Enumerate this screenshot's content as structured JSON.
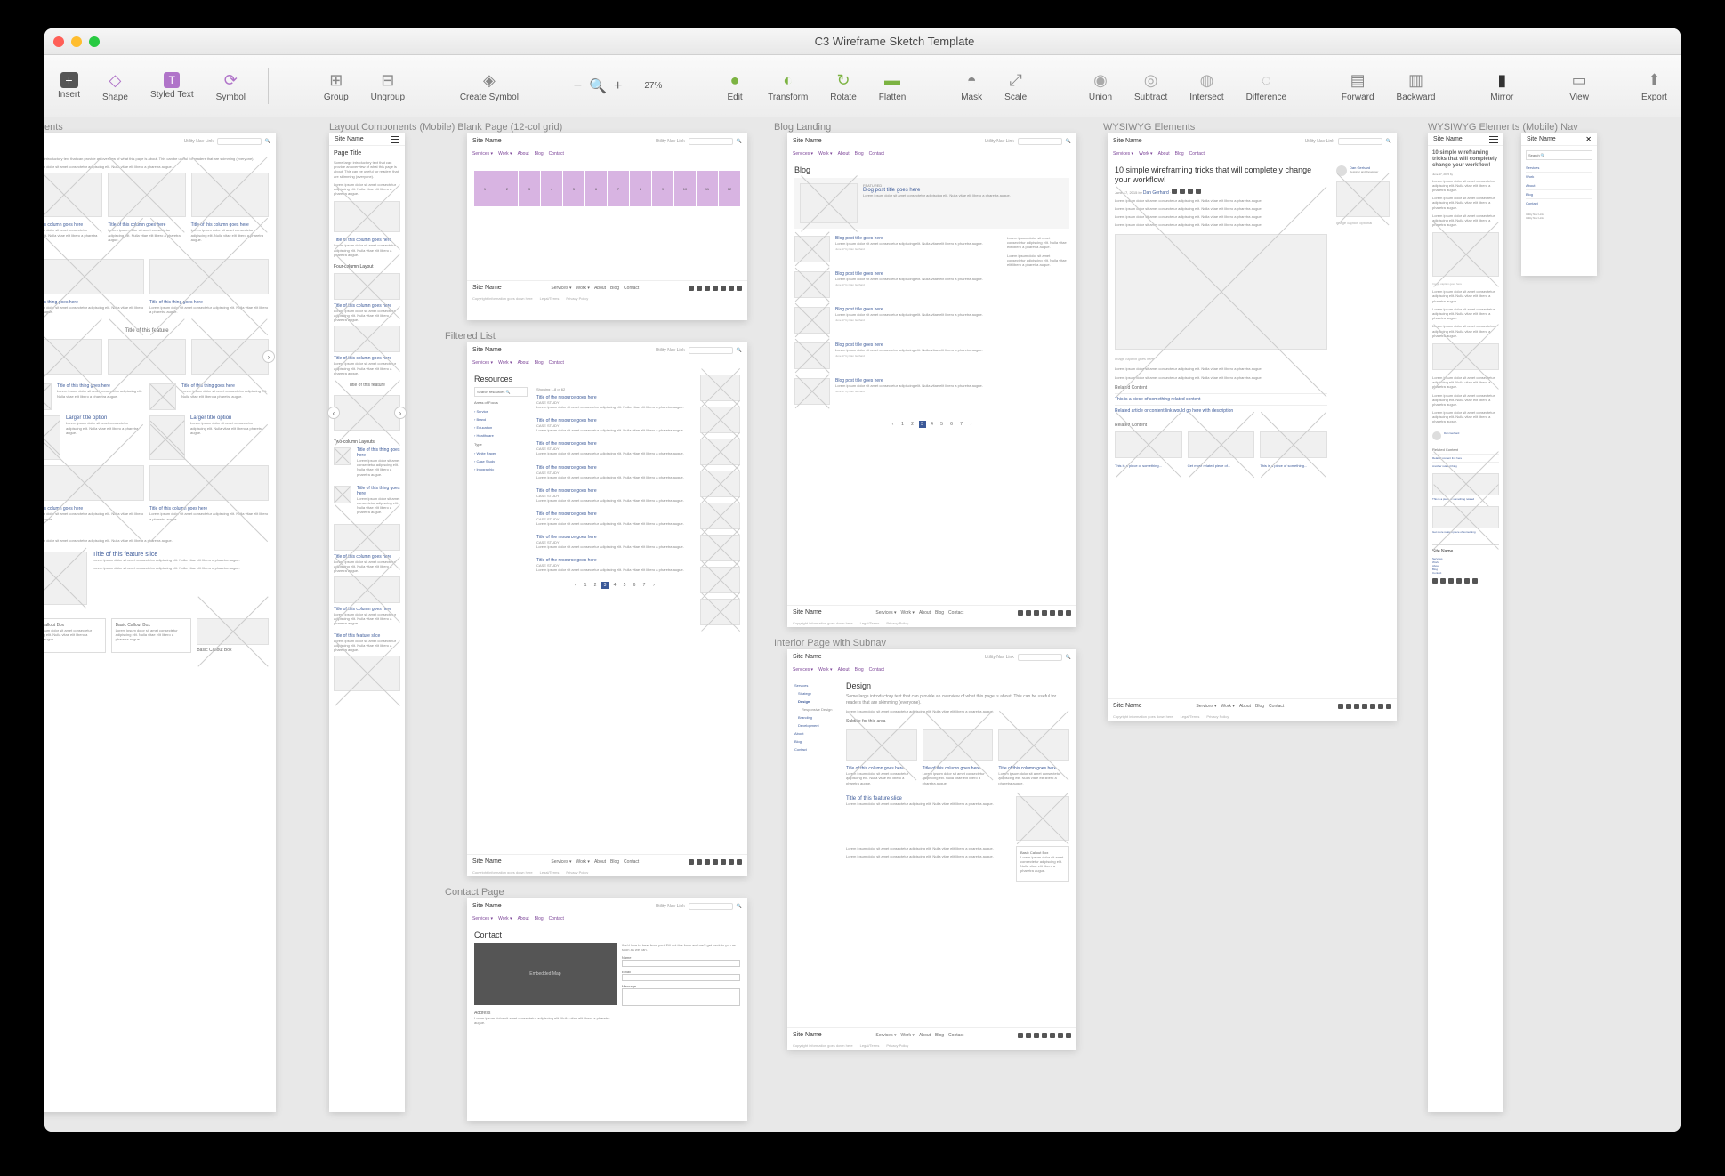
{
  "window": {
    "title": "C3 Wireframe Sketch Template"
  },
  "toolbar": {
    "insert": "Insert",
    "shape": "Shape",
    "styled_text": "Styled Text",
    "symbol": "Symbol",
    "group": "Group",
    "ungroup": "Ungroup",
    "create_symbol": "Create Symbol",
    "zoom_level": "27%",
    "edit": "Edit",
    "transform": "Transform",
    "rotate": "Rotate",
    "flatten": "Flatten",
    "mask": "Mask",
    "scale": "Scale",
    "union": "Union",
    "subtract": "Subtract",
    "intersect": "Intersect",
    "difference": "Difference",
    "forward": "Forward",
    "backward": "Backward",
    "mirror": "Mirror",
    "view": "View",
    "export": "Export"
  },
  "artboards": {
    "col1_label": "ents",
    "col2_label": "Layout Components (Mobile) Blank Page (12-col grid)",
    "col3_label": "Filtered List",
    "col4_label": "Contact Page",
    "col5_label": "Blog Landing",
    "col6_label": "Interior Page with Subnav",
    "col7_label": "WYSIWYG Elements",
    "col8_label": "WYSIWYG Elements (Mobile) Nav"
  },
  "wireframe": {
    "site_name": "Site Name",
    "utility_link": "Utility Nav Link",
    "nav_items": [
      "Services ▾",
      "Work ▾",
      "About",
      "Blog",
      "Contact"
    ],
    "page_title": "Page Title",
    "intro": "Some large introductory text that can provide an overview of what this page is about. This can be useful for readers that are skimming (everyone).",
    "lorem": "Lorem ipsum dolor sit amet consectetur adipiscing elit. Nulla vitae elit libero a pharetra augue.",
    "blog_title": "Blog",
    "blog_post_title": "Blog post title goes here",
    "resources_title": "Resources",
    "resource_title": "Title of the resource goes here",
    "case_study": "CASE STUDY",
    "contact_title": "Contact",
    "contact_msg": "We'd love to hear from you! Fill out this form and we'll get back to you as soon as we can.",
    "design_title": "Design",
    "article_title": "10 simple wireframing tricks that will completely change your workflow!",
    "article_date": "June 17, 2015 by",
    "article_author": "Dan Gerhard",
    "feature_title": "Title of this feature",
    "feature_slice": "Title of this feature slice",
    "column_title": "Title of this column goes here",
    "thing_title": "Title of this thing goes here",
    "larger_title": "Larger title option",
    "callout": "Basic Callout Box",
    "four_col": "Four-column Layout",
    "two_col": "Two-column Layouts",
    "related": "Related Content",
    "subtitle_area": "Subtitle for this area",
    "footer_copyright": "Copyright information goes down here",
    "footer_links": [
      "Legal/Terms",
      "Privacy Policy"
    ],
    "footer_nav": [
      "Services ▾",
      "Work ▾",
      "About",
      "Blog",
      "Contact"
    ],
    "sidenav": [
      "Services",
      "Strategy",
      "Design",
      "Responsive Design",
      "Branding",
      "Development",
      "About",
      "Blog",
      "Contact"
    ],
    "mobile_nav": [
      "Services",
      "Work",
      "About",
      "Blog",
      "Contact"
    ]
  },
  "colors": {
    "purple": "#d8b4e2",
    "link": "#3b5998",
    "accent": "#7b4397",
    "bg": "#e8e8e8"
  }
}
